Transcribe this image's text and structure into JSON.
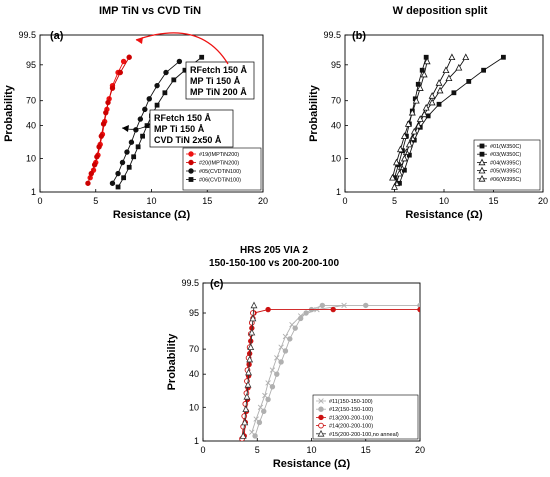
{
  "figure_name": "probability-resistance-figure",
  "chart_data": [
    {
      "id": "panel-a",
      "type": "scatter",
      "title": "IMP TiN vs CVD TiN",
      "panel_label": "(a)",
      "xlabel": "Resistance (Ω)",
      "ylabel": "Probability",
      "xlim": [
        0,
        20
      ],
      "xticks": [
        "0",
        "5",
        "10",
        "15",
        "20"
      ],
      "yscale": "probability",
      "yticks": [
        "1",
        "10",
        "40",
        "70",
        "95",
        "99.5"
      ],
      "ylim": [
        1,
        99.5
      ],
      "grid": false,
      "legend_position": "bottom-right",
      "series": [
        {
          "name": "#19(IMPTiN200)",
          "color": "#ee1111",
          "marker": "circle-filled",
          "line": true,
          "points": [
            [
              4.5,
              3
            ],
            [
              4.8,
              5
            ],
            [
              5.0,
              8
            ],
            [
              5.2,
              12
            ],
            [
              5.4,
              20
            ],
            [
              5.6,
              30
            ],
            [
              5.8,
              45
            ],
            [
              6.0,
              60
            ],
            [
              6.2,
              72
            ],
            [
              6.5,
              84
            ],
            [
              7.0,
              92
            ],
            [
              7.5,
              96
            ]
          ]
        },
        {
          "name": "#20(IMPTiN200)",
          "color": "#cc0000",
          "marker": "circle-filled",
          "line": true,
          "points": [
            [
              4.3,
              2
            ],
            [
              4.6,
              4
            ],
            [
              4.9,
              7
            ],
            [
              5.1,
              11
            ],
            [
              5.3,
              18
            ],
            [
              5.5,
              28
            ],
            [
              5.7,
              42
            ],
            [
              5.9,
              56
            ],
            [
              6.1,
              68
            ],
            [
              6.5,
              82
            ],
            [
              7.2,
              92
            ],
            [
              8.0,
              97
            ]
          ]
        },
        {
          "name": "#05(CVDTiN100)",
          "color": "#111111",
          "marker": "circle-filled",
          "line": true,
          "points": [
            [
              6.5,
              2
            ],
            [
              7.0,
              4
            ],
            [
              7.4,
              8
            ],
            [
              7.8,
              14
            ],
            [
              8.2,
              22
            ],
            [
              8.6,
              35
            ],
            [
              9.0,
              48
            ],
            [
              9.4,
              60
            ],
            [
              9.8,
              72
            ],
            [
              10.5,
              84
            ],
            [
              11.3,
              92
            ],
            [
              12.5,
              96
            ]
          ]
        },
        {
          "name": "#06(CVDTiN100)",
          "color": "#111111",
          "marker": "square-filled",
          "line": true,
          "points": [
            [
              7.0,
              1.5
            ],
            [
              7.5,
              3
            ],
            [
              8.0,
              6
            ],
            [
              8.4,
              11
            ],
            [
              8.8,
              18
            ],
            [
              9.2,
              28
            ],
            [
              9.6,
              40
            ],
            [
              10.0,
              52
            ],
            [
              10.5,
              65
            ],
            [
              11.2,
              78
            ],
            [
              12.0,
              88
            ],
            [
              13.0,
              93
            ],
            [
              14.5,
              97
            ]
          ]
        }
      ],
      "annotations": [
        {
          "lines": [
            "RFetch  150 Å",
            "MP Ti    150 Å",
            "MP TiN  200 Å"
          ]
        },
        {
          "lines": [
            "RFetch  150 Å",
            "MP Ti    150 Å",
            "CVD TiN 2x50 Å"
          ]
        }
      ]
    },
    {
      "id": "panel-b",
      "type": "scatter",
      "title": "W deposition split",
      "panel_label": "(b)",
      "xlabel": "Resistance (Ω)",
      "ylabel": "Probability",
      "xlim": [
        0,
        20
      ],
      "xticks": [
        "0",
        "5",
        "10",
        "15",
        "20"
      ],
      "yscale": "probability",
      "yticks": [
        "1",
        "10",
        "40",
        "70",
        "95",
        "99.5"
      ],
      "ylim": [
        1,
        99.5
      ],
      "grid": false,
      "legend_position": "bottom-right",
      "series": [
        {
          "name": "#01(W350C)",
          "color": "#111111",
          "marker": "square-filled",
          "line": true,
          "points": [
            [
              5.0,
              3
            ],
            [
              5.4,
              7
            ],
            [
              5.8,
              15
            ],
            [
              6.2,
              28
            ],
            [
              6.5,
              42
            ],
            [
              6.8,
              58
            ],
            [
              7.1,
              72
            ],
            [
              7.4,
              85
            ],
            [
              7.8,
              93
            ],
            [
              8.2,
              97
            ]
          ]
        },
        {
          "name": "#03(W350C)",
          "color": "#111111",
          "marker": "square-filled",
          "line": true,
          "points": [
            [
              5.5,
              2
            ],
            [
              6.0,
              5
            ],
            [
              6.5,
              12
            ],
            [
              7.0,
              24
            ],
            [
              7.6,
              38
            ],
            [
              8.4,
              52
            ],
            [
              9.5,
              66
            ],
            [
              11.0,
              78
            ],
            [
              12.5,
              87
            ],
            [
              14.0,
              93
            ],
            [
              16.0,
              97
            ]
          ]
        },
        {
          "name": "#04(W395C)",
          "color": "#111111",
          "marker": "triangle-open",
          "line": true,
          "points": [
            [
              4.8,
              3
            ],
            [
              5.2,
              8
            ],
            [
              5.6,
              16
            ],
            [
              6.0,
              28
            ],
            [
              6.4,
              42
            ],
            [
              6.8,
              56
            ],
            [
              7.2,
              70
            ],
            [
              7.6,
              82
            ],
            [
              8.0,
              91
            ],
            [
              8.3,
              96
            ]
          ]
        },
        {
          "name": "#05(W395C)",
          "color": "#111111",
          "marker": "triangle-open",
          "line": true,
          "points": [
            [
              5.2,
              2
            ],
            [
              5.7,
              6
            ],
            [
              6.2,
              14
            ],
            [
              6.8,
              26
            ],
            [
              7.4,
              40
            ],
            [
              8.0,
              54
            ],
            [
              8.8,
              68
            ],
            [
              9.6,
              80
            ],
            [
              10.5,
              89
            ],
            [
              11.5,
              94
            ],
            [
              12.2,
              97
            ]
          ]
        },
        {
          "name": "#06(W395C)",
          "color": "#111111",
          "marker": "triangle-open",
          "line": true,
          "points": [
            [
              5.0,
              1.5
            ],
            [
              5.5,
              4
            ],
            [
              6.0,
              10
            ],
            [
              6.5,
              20
            ],
            [
              7.0,
              33
            ],
            [
              7.6,
              48
            ],
            [
              8.2,
              62
            ],
            [
              8.8,
              75
            ],
            [
              9.5,
              86
            ],
            [
              10.2,
              93
            ],
            [
              10.8,
              97
            ]
          ]
        }
      ]
    },
    {
      "id": "panel-c",
      "type": "scatter",
      "title": "HRS 205 VIA 2",
      "subtitle": "150-150-100 vs 200-200-100",
      "panel_label": "(c)",
      "xlabel": "Resistance (Ω)",
      "ylabel": "Probability",
      "xlim": [
        0,
        20
      ],
      "xticks": [
        "0",
        "5",
        "10",
        "15",
        "20"
      ],
      "yscale": "probability",
      "yticks": [
        "1",
        "10",
        "40",
        "70",
        "95",
        "99.5"
      ],
      "ylim": [
        1,
        99.5
      ],
      "grid": false,
      "legend_position": "bottom-right",
      "series": [
        {
          "name": "#11(150-150-100)",
          "color": "#b0b0b0",
          "marker": "x",
          "line": true,
          "points": [
            [
              4.5,
              2
            ],
            [
              4.9,
              5
            ],
            [
              5.3,
              10
            ],
            [
              5.7,
              18
            ],
            [
              6.0,
              30
            ],
            [
              6.4,
              45
            ],
            [
              6.8,
              60
            ],
            [
              7.2,
              72
            ],
            [
              7.6,
              82
            ],
            [
              8.2,
              90
            ],
            [
              9.0,
              94
            ],
            [
              10.5,
              96
            ],
            [
              13.0,
              97
            ]
          ]
        },
        {
          "name": "#12(150-150-100)",
          "color": "#b0b0b0",
          "marker": "circle-filled",
          "line": true,
          "points": [
            [
              4.8,
              1.5
            ],
            [
              5.2,
              4
            ],
            [
              5.6,
              8
            ],
            [
              6.0,
              15
            ],
            [
              6.4,
              26
            ],
            [
              6.8,
              40
            ],
            [
              7.2,
              55
            ],
            [
              7.6,
              68
            ],
            [
              8.0,
              80
            ],
            [
              8.5,
              88
            ],
            [
              9.0,
              93
            ],
            [
              9.5,
              95
            ],
            [
              10.0,
              96
            ],
            [
              11.0,
              97
            ],
            [
              15.0,
              97
            ],
            [
              20.0,
              97
            ]
          ]
        },
        {
          "name": "#13(200-200-100)",
          "color": "#cc1111",
          "marker": "circle-filled",
          "line": true,
          "points": [
            [
              3.8,
              1.5
            ],
            [
              3.9,
              4
            ],
            [
              4.0,
              8
            ],
            [
              4.1,
              15
            ],
            [
              4.15,
              25
            ],
            [
              4.2,
              38
            ],
            [
              4.25,
              52
            ],
            [
              4.3,
              65
            ],
            [
              4.4,
              78
            ],
            [
              4.5,
              88
            ],
            [
              4.6,
              93
            ],
            [
              4.7,
              95
            ],
            [
              6.0,
              96
            ],
            [
              12.0,
              96
            ],
            [
              20.0,
              96
            ]
          ]
        },
        {
          "name": "#14(200-200-100)",
          "color": "#cc1111",
          "marker": "circle-open",
          "line": true,
          "points": [
            [
              3.6,
              1.2
            ],
            [
              3.7,
              3
            ],
            [
              3.8,
              6
            ],
            [
              3.9,
              12
            ],
            [
              4.0,
              20
            ],
            [
              4.05,
              32
            ],
            [
              4.1,
              45
            ],
            [
              4.2,
              60
            ],
            [
              4.3,
              72
            ],
            [
              4.4,
              84
            ],
            [
              4.5,
              91
            ],
            [
              4.6,
              95
            ]
          ]
        },
        {
          "name": "#15(200-200-100,no anneal)",
          "color": "#333333",
          "marker": "triangle-open",
          "line": true,
          "points": [
            [
              3.7,
              1.5
            ],
            [
              3.85,
              4
            ],
            [
              3.95,
              9
            ],
            [
              4.05,
              17
            ],
            [
              4.15,
              28
            ],
            [
              4.2,
              42
            ],
            [
              4.3,
              58
            ],
            [
              4.4,
              72
            ],
            [
              4.5,
              85
            ],
            [
              4.6,
              93
            ],
            [
              4.7,
              97
            ]
          ]
        }
      ]
    }
  ]
}
